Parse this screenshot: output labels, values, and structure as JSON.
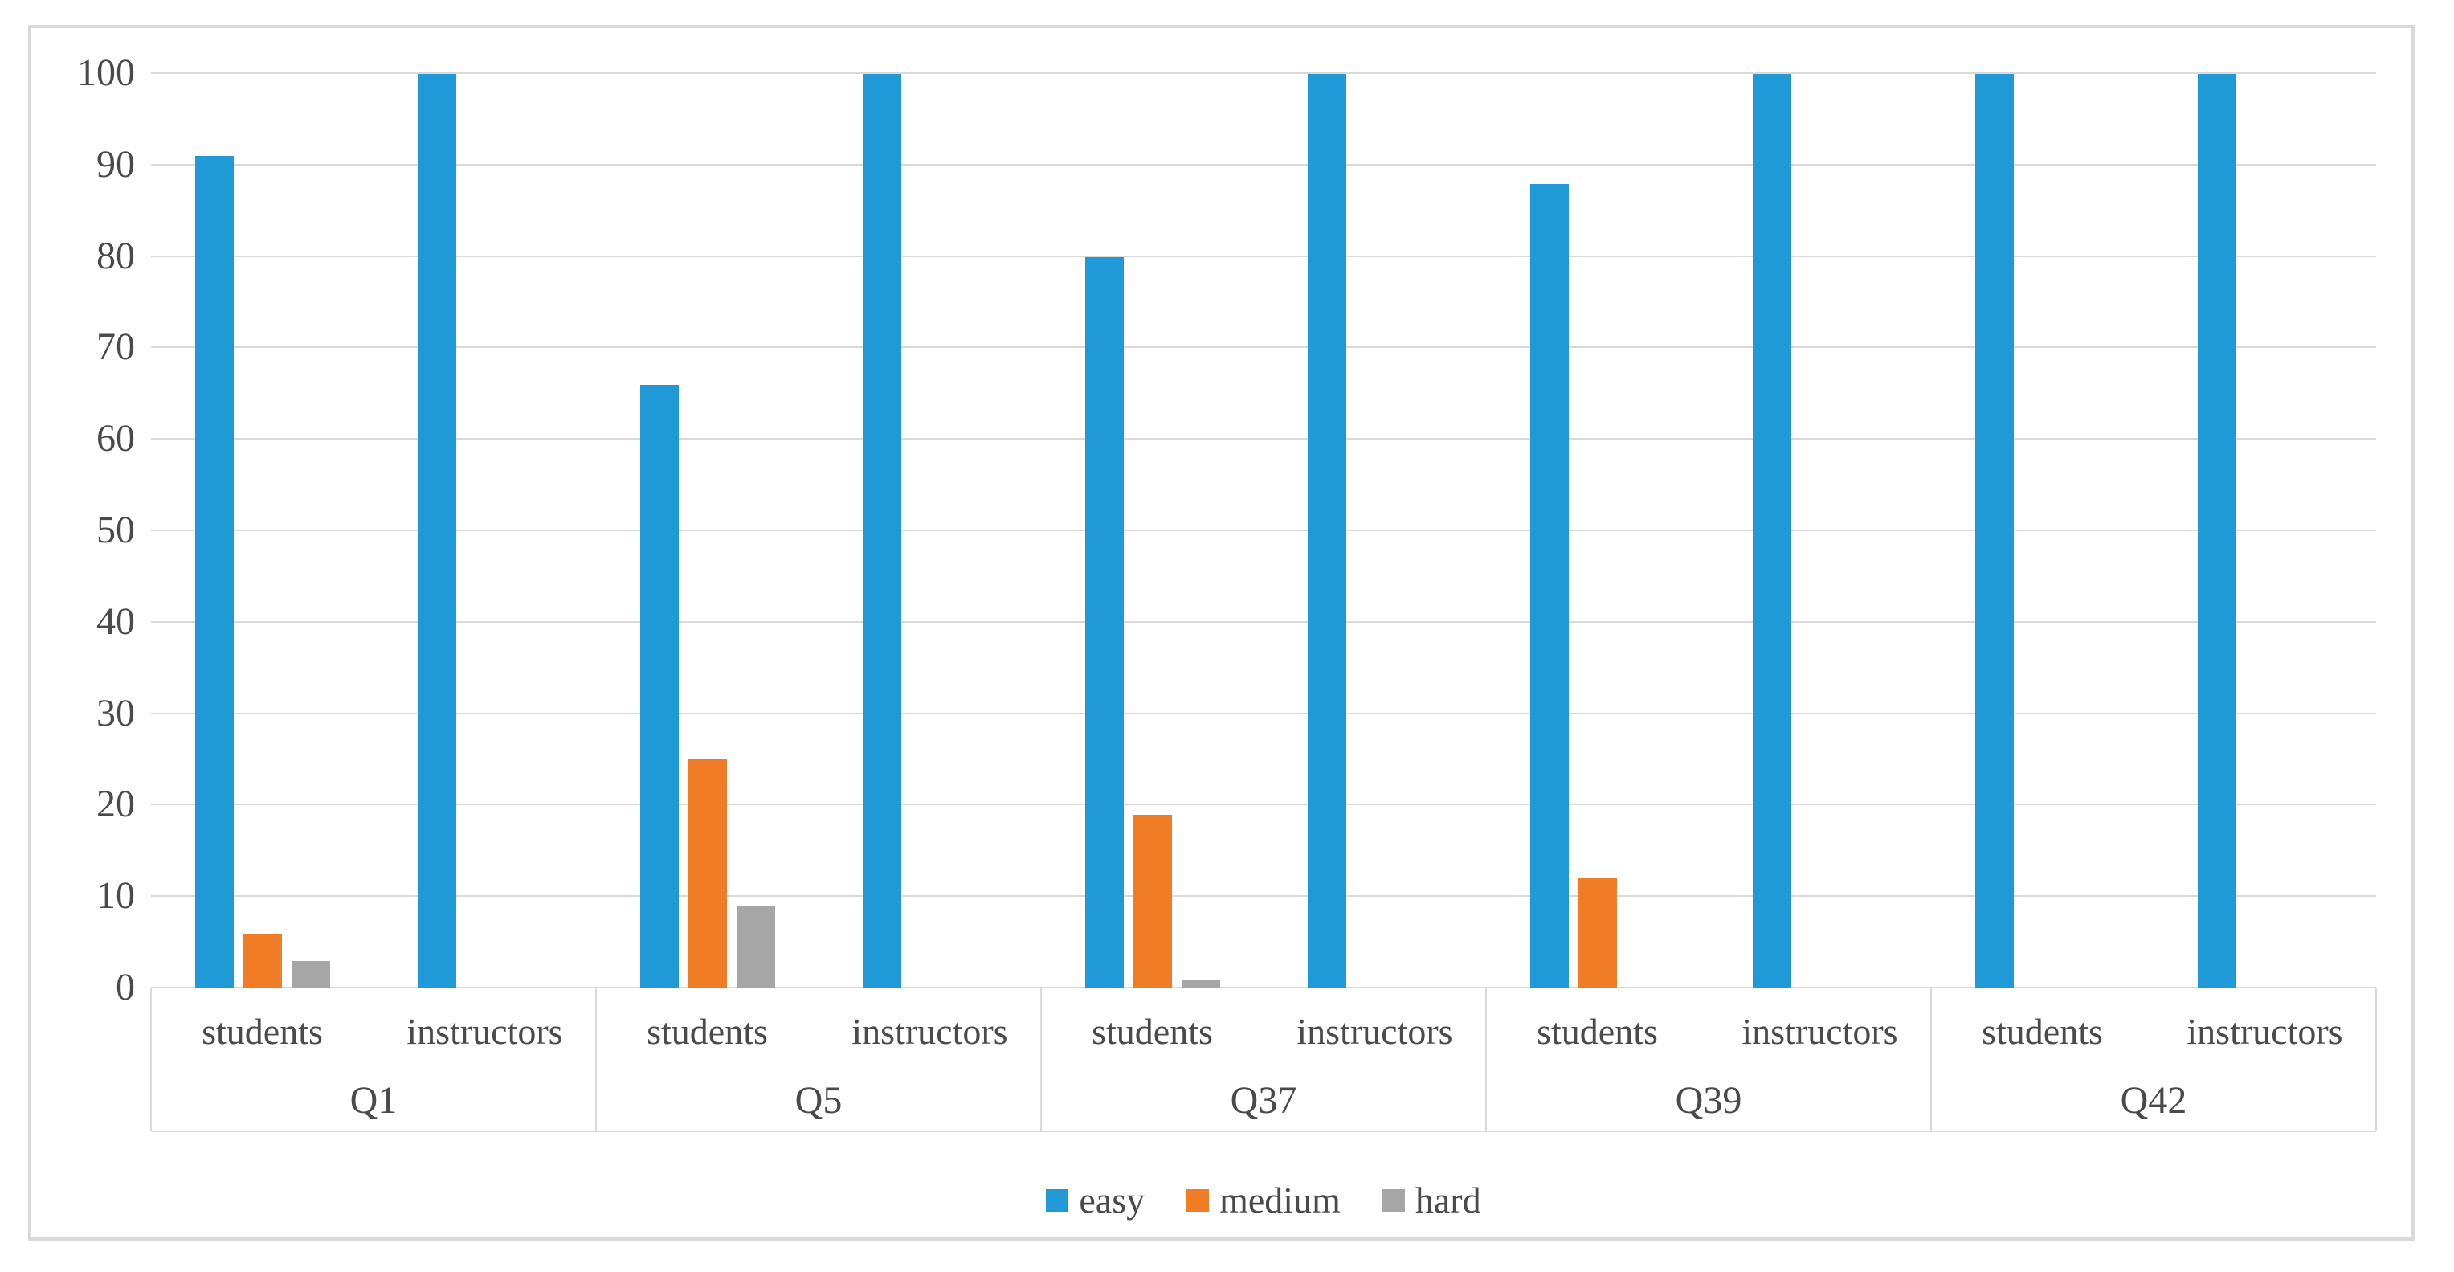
{
  "chart_data": {
    "type": "bar",
    "title": "",
    "y_axis": {
      "min": 0,
      "max": 100,
      "step": 10,
      "tick_labels": [
        "0",
        "10",
        "20",
        "30",
        "40",
        "50",
        "60",
        "70",
        "80",
        "90",
        "100"
      ]
    },
    "grid": true,
    "legend_position": "bottom",
    "groups": [
      "Q1",
      "Q5",
      "Q37",
      "Q39",
      "Q42"
    ],
    "subgroups": [
      "students",
      "instructors"
    ],
    "series": [
      {
        "name": "easy",
        "color": "#1F9AD7",
        "values": [
          [
            91,
            100
          ],
          [
            66,
            100
          ],
          [
            80,
            100
          ],
          [
            88,
            100
          ],
          [
            100,
            100
          ]
        ]
      },
      {
        "name": "medium",
        "color": "#F07C26",
        "values": [
          [
            6,
            0
          ],
          [
            25,
            0
          ],
          [
            19,
            0
          ],
          [
            12,
            0
          ],
          [
            0,
            0
          ]
        ]
      },
      {
        "name": "hard",
        "color": "#A6A6A6",
        "values": [
          [
            3,
            0
          ],
          [
            9,
            0
          ],
          [
            1,
            0
          ],
          [
            0,
            0
          ],
          [
            0,
            0
          ]
        ]
      }
    ],
    "colors": {
      "gridline": "#D9D9D9",
      "chart_border": "#D9D9D9",
      "axis_text": "#4A4A4A",
      "background": "#FFFFFF"
    }
  }
}
